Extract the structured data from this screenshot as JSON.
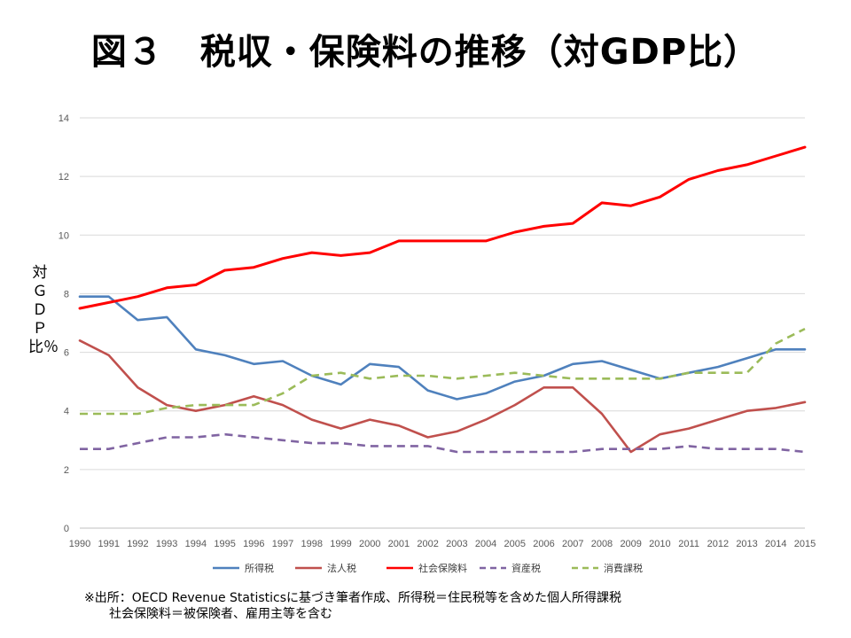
{
  "title": "図３　税収・保険料の推移（対GDP比）",
  "source_note": "※出所：OECD Revenue Statisticsに基づき筆者作成、所得税＝住民税等を含めた個人所得課税\n　　社会保険料＝被保険者、雇用主等を含む",
  "chart_data": {
    "type": "line",
    "title": "図３　税収・保険料の推移（対GDP比）",
    "ylabel": "対ＧＤＰ比％",
    "xlabel": "",
    "ylim": [
      0,
      14
    ],
    "yticks": [
      "0",
      "2",
      "4",
      "6",
      "8",
      "10",
      "12",
      "14"
    ],
    "grid": true,
    "legend_position": "bottom",
    "x": [
      "1990",
      "1991",
      "1992",
      "1993",
      "1994",
      "1995",
      "1996",
      "1997",
      "1998",
      "1999",
      "2000",
      "2001",
      "2002",
      "2003",
      "2004",
      "2005",
      "2006",
      "2007",
      "2008",
      "2009",
      "2010",
      "2011",
      "2012",
      "2013",
      "2014",
      "2015"
    ],
    "series": [
      {
        "name": "所得税",
        "color": "#4F81BD",
        "dash": "solid",
        "values": [
          7.9,
          7.9,
          7.1,
          7.2,
          6.1,
          5.9,
          5.6,
          5.7,
          5.2,
          4.9,
          5.6,
          5.5,
          4.7,
          4.4,
          4.6,
          5.0,
          5.2,
          5.6,
          5.7,
          5.4,
          5.1,
          5.3,
          5.5,
          5.8,
          6.1,
          6.1
        ]
      },
      {
        "name": "法人税",
        "color": "#C0504D",
        "dash": "solid",
        "values": [
          6.4,
          5.9,
          4.8,
          4.2,
          4.0,
          4.2,
          4.5,
          4.2,
          3.7,
          3.4,
          3.7,
          3.5,
          3.1,
          3.3,
          3.7,
          4.2,
          4.8,
          4.8,
          3.9,
          2.6,
          3.2,
          3.4,
          3.7,
          4.0,
          4.1,
          4.3
        ]
      },
      {
        "name": "社会保険料",
        "color": "#FF0000",
        "dash": "solid",
        "values": [
          7.5,
          7.7,
          7.9,
          8.2,
          8.3,
          8.8,
          8.9,
          9.2,
          9.4,
          9.3,
          9.4,
          9.8,
          9.8,
          9.8,
          9.8,
          10.1,
          10.3,
          10.4,
          11.1,
          11.0,
          11.3,
          11.9,
          12.2,
          12.4,
          12.7,
          13.0
        ]
      },
      {
        "name": "資産税",
        "color": "#8064A2",
        "dash": "dashed",
        "values": [
          2.7,
          2.7,
          2.9,
          3.1,
          3.1,
          3.2,
          3.1,
          3.0,
          2.9,
          2.9,
          2.8,
          2.8,
          2.8,
          2.6,
          2.6,
          2.6,
          2.6,
          2.6,
          2.7,
          2.7,
          2.7,
          2.8,
          2.7,
          2.7,
          2.7,
          2.6
        ]
      },
      {
        "name": "消費課税",
        "color": "#9BBB59",
        "dash": "dashed",
        "values": [
          3.9,
          3.9,
          3.9,
          4.1,
          4.2,
          4.2,
          4.2,
          4.6,
          5.2,
          5.3,
          5.1,
          5.2,
          5.2,
          5.1,
          5.2,
          5.3,
          5.2,
          5.1,
          5.1,
          5.1,
          5.1,
          5.3,
          5.3,
          5.3,
          6.3,
          6.8
        ]
      }
    ]
  }
}
